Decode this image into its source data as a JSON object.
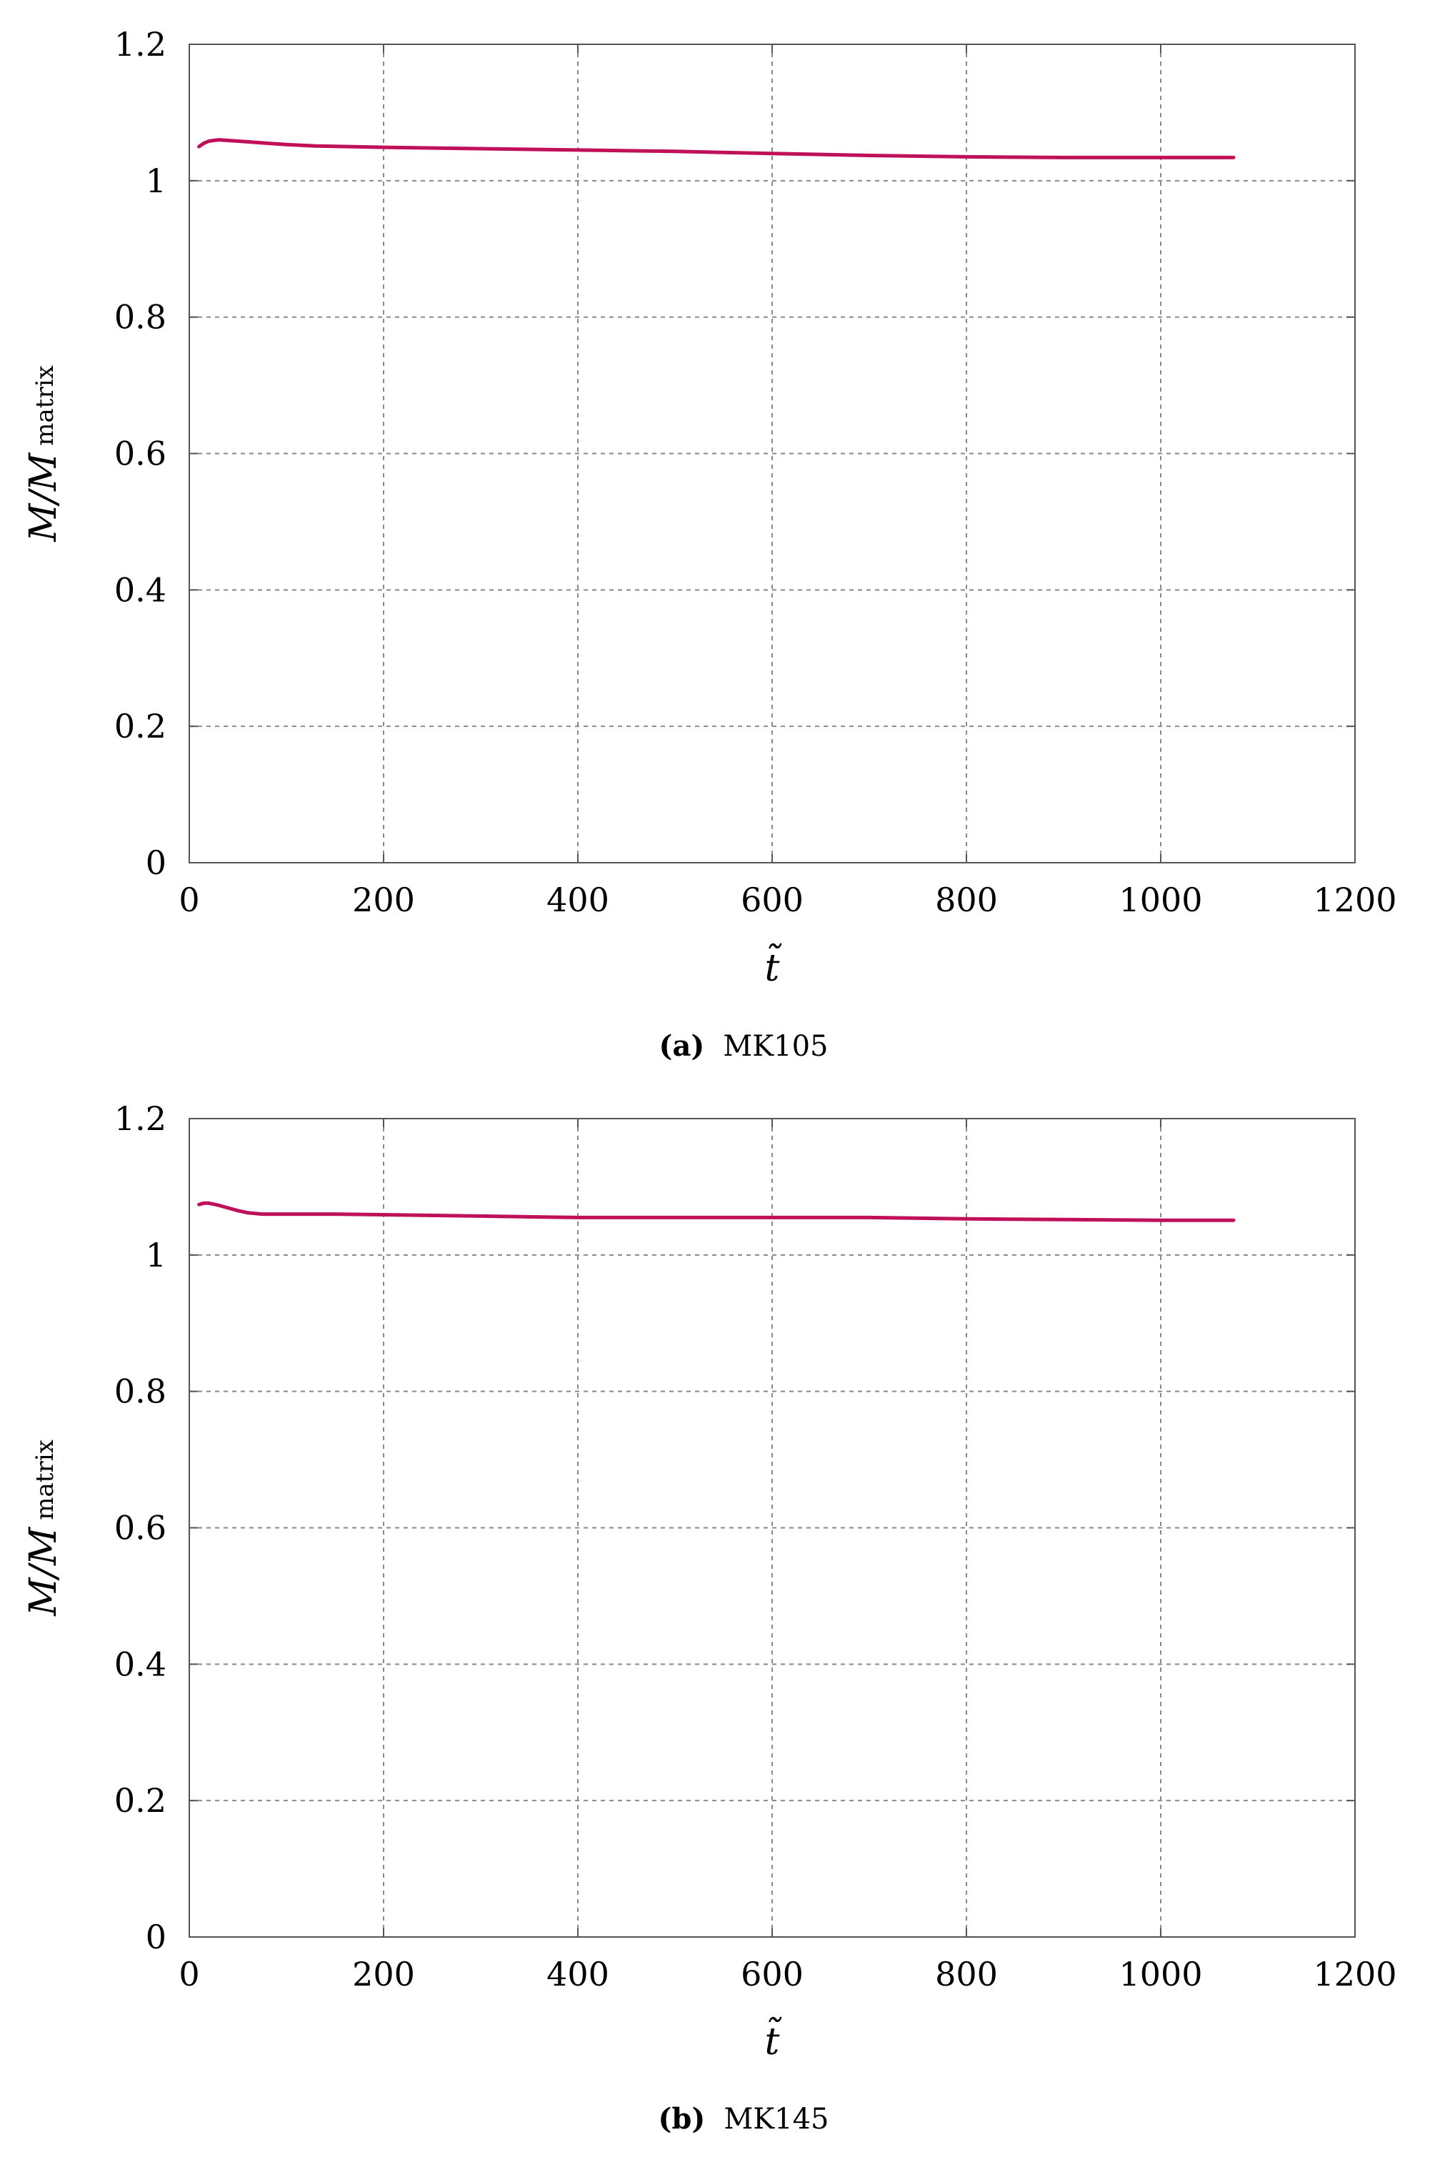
{
  "chart_data": [
    {
      "type": "line",
      "caption_tag": "(a)",
      "caption_name": "MK105",
      "xlabel": "t̃",
      "ylabel_main": "M/M",
      "ylabel_sub": "matrix",
      "xlim": [
        0,
        1200
      ],
      "ylim": [
        0,
        1.2
      ],
      "xticks": [
        "0",
        "200",
        "400",
        "600",
        "800",
        "1000",
        "1200"
      ],
      "yticks": [
        "0",
        "0.2",
        "0.4",
        "0.6",
        "0.8",
        "1",
        "1.2"
      ],
      "grid": true,
      "series": [
        {
          "color": "#c0105a",
          "x": [
            10,
            15,
            20,
            30,
            40,
            60,
            80,
            100,
            130,
            200,
            300,
            400,
            500,
            600,
            700,
            800,
            900,
            1000,
            1075
          ],
          "y": [
            1.05,
            1.055,
            1.058,
            1.06,
            1.059,
            1.057,
            1.055,
            1.053,
            1.051,
            1.049,
            1.047,
            1.045,
            1.043,
            1.04,
            1.037,
            1.035,
            1.034,
            1.034,
            1.034
          ]
        }
      ]
    },
    {
      "type": "line",
      "caption_tag": "(b)",
      "caption_name": "MK145",
      "xlabel": "t̃",
      "ylabel_main": "M/M",
      "ylabel_sub": "matrix",
      "xlim": [
        0,
        1200
      ],
      "ylim": [
        0,
        1.2
      ],
      "xticks": [
        "0",
        "200",
        "400",
        "600",
        "800",
        "1000",
        "1200"
      ],
      "yticks": [
        "0",
        "0.2",
        "0.4",
        "0.6",
        "0.8",
        "1",
        "1.2"
      ],
      "grid": true,
      "series": [
        {
          "color": "#c0105a",
          "x": [
            10,
            15,
            20,
            30,
            40,
            50,
            60,
            75,
            100,
            150,
            200,
            300,
            400,
            500,
            600,
            700,
            800,
            900,
            1000,
            1075
          ],
          "y": [
            1.074,
            1.076,
            1.076,
            1.073,
            1.069,
            1.065,
            1.062,
            1.06,
            1.06,
            1.06,
            1.059,
            1.057,
            1.055,
            1.055,
            1.055,
            1.055,
            1.053,
            1.052,
            1.051,
            1.051
          ]
        }
      ]
    }
  ]
}
